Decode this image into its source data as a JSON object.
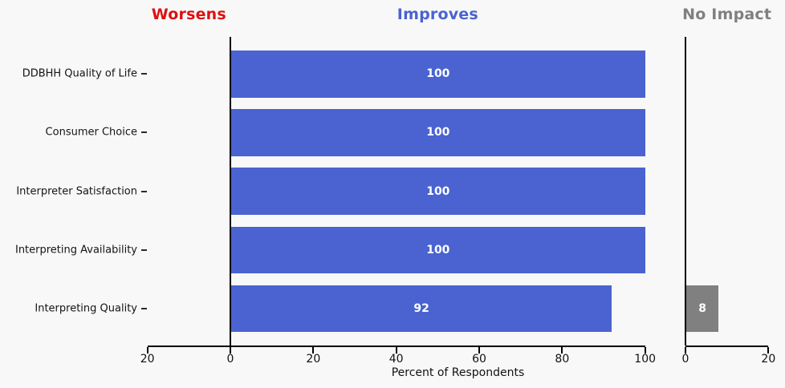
{
  "headers": {
    "worsens": "Worsens",
    "improves": "Improves",
    "no_impact": "No Impact"
  },
  "colors": {
    "worsens_header": "#dd1111",
    "improves_header": "#4a63d1",
    "no_impact_header": "#808080",
    "improves_bar": "#4a63d1",
    "no_impact_bar": "#808080",
    "worsens_bar": "#dd1111",
    "bar_value_text": "#ffffff",
    "background": "#f8f8f8",
    "axis": "#000000"
  },
  "chart_data": {
    "type": "bar",
    "orientation": "horizontal",
    "title": "",
    "xlabel": "Percent of Respondents",
    "grid": false,
    "categories": [
      "DDBHH Quality of Life",
      "Consumer Choice",
      "Interpreter Satisfaction",
      "Interpreting Availability",
      "Interpreting Quality"
    ],
    "series": [
      {
        "name": "Worsens",
        "values": [
          0,
          0,
          0,
          0,
          0
        ]
      },
      {
        "name": "Improves",
        "values": [
          100,
          100,
          100,
          100,
          92
        ]
      },
      {
        "name": "No Impact",
        "values": [
          0,
          0,
          0,
          0,
          8
        ]
      }
    ],
    "bar_value_labels": {
      "improves": [
        "100",
        "100",
        "100",
        "100",
        "92"
      ],
      "no_impact": [
        "",
        "",
        "",
        "",
        "8"
      ]
    },
    "axes": {
      "main": {
        "xlim": [
          -20,
          100
        ],
        "tick_values": [
          -20,
          0,
          20,
          40,
          60,
          80,
          100
        ],
        "tick_labels": [
          "20",
          "0",
          "20",
          "40",
          "60",
          "80",
          "100"
        ]
      },
      "no_impact": {
        "xlim": [
          0,
          20
        ],
        "tick_values": [
          0,
          20
        ],
        "tick_labels": [
          "0",
          "20"
        ]
      }
    }
  }
}
